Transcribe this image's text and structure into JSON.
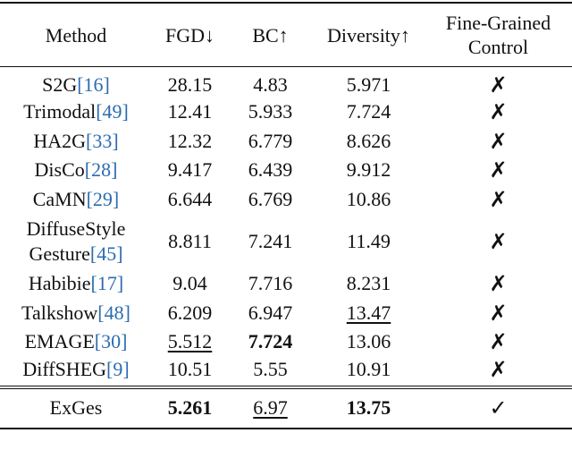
{
  "table": {
    "header": {
      "method": "Method",
      "fgd": "FGD↓",
      "bc": "BC↑",
      "diversity": "Diversity↑",
      "control": "Fine-Grained Control"
    },
    "rows": [
      {
        "method": "S2G",
        "ref": "[16]",
        "fgd": "28.15",
        "bc": "4.83",
        "diversity": "5.971",
        "control": "✗"
      },
      {
        "method": "Trimodal",
        "ref": "[49]",
        "fgd": "12.41",
        "bc": "5.933",
        "diversity": "7.724",
        "control": "✗"
      },
      {
        "method": "HA2G",
        "ref": "[33]",
        "fgd": "12.32",
        "bc": "6.779",
        "diversity": "8.626",
        "control": "✗"
      },
      {
        "method": "DisCo",
        "ref": "[28]",
        "fgd": "9.417",
        "bc": "6.439",
        "diversity": "9.912",
        "control": "✗"
      },
      {
        "method": "CaMN",
        "ref": "[29]",
        "fgd": "6.644",
        "bc": "6.769",
        "diversity": "10.86",
        "control": "✗"
      },
      {
        "method": "DiffuseStyle Gesture",
        "ref": "[45]",
        "fgd": "8.811",
        "bc": "7.241",
        "diversity": "11.49",
        "control": "✗"
      },
      {
        "method": "Habibie",
        "ref": "[17]",
        "fgd": "9.04",
        "bc": "7.716",
        "diversity": "8.231",
        "control": "✗"
      },
      {
        "method": "Talkshow",
        "ref": "[48]",
        "fgd": "6.209",
        "bc": "6.947",
        "diversity": "13.47",
        "control": "✗"
      },
      {
        "method": "EMAGE",
        "ref": "[30]",
        "fgd": "5.512",
        "bc": "7.724",
        "diversity": "13.06",
        "control": "✗"
      },
      {
        "method": "DiffSHEG",
        "ref": "[9]",
        "fgd": "10.51",
        "bc": "5.55",
        "diversity": "10.91",
        "control": "✗"
      }
    ],
    "ours": {
      "method": "ExGes",
      "fgd": "5.261",
      "bc": "6.97",
      "diversity": "13.75",
      "control": "✓"
    }
  }
}
